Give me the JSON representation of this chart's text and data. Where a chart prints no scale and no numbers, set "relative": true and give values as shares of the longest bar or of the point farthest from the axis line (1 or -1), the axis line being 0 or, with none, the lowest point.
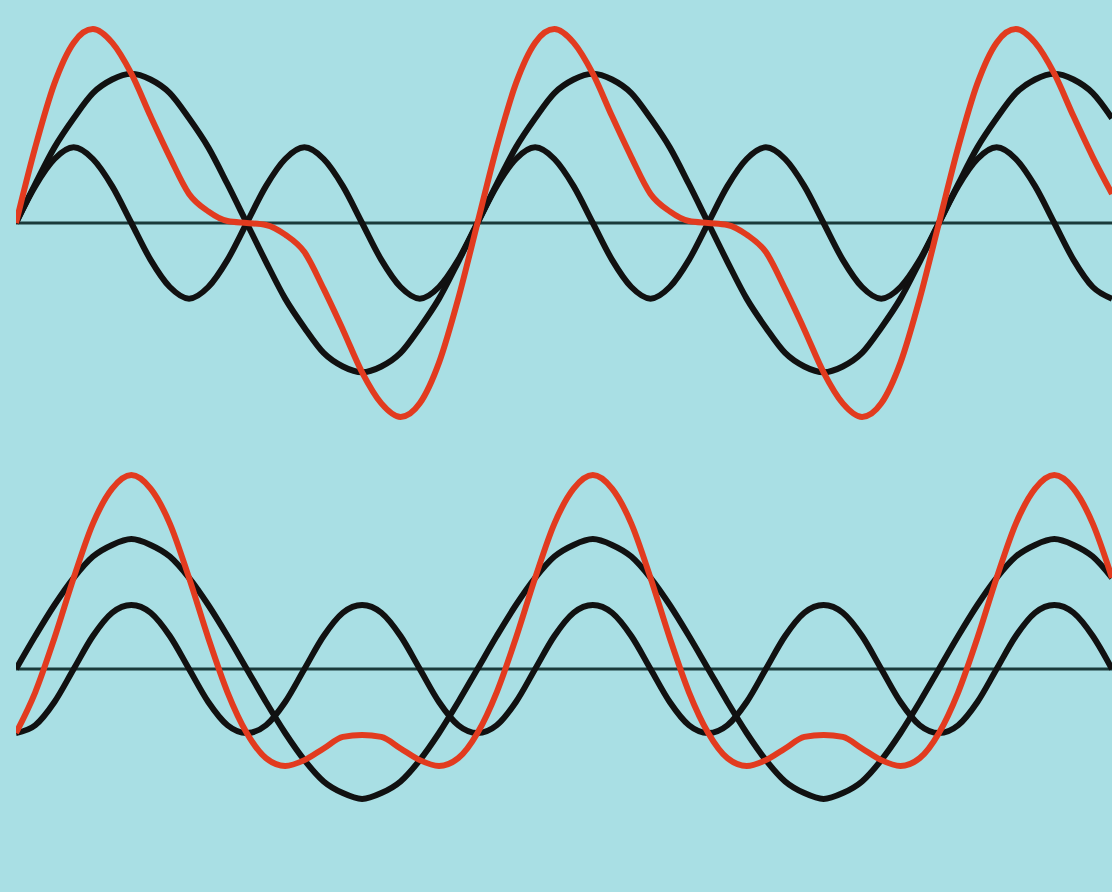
{
  "chart_data": [
    {
      "type": "line",
      "relative": true,
      "categories": [
        null,
        null,
        null,
        null,
        null,
        null,
        null,
        null,
        null,
        null,
        null,
        null,
        null,
        null,
        null,
        null,
        null,
        null,
        null,
        null,
        null,
        null,
        null,
        null,
        null,
        null,
        null,
        null,
        null,
        null,
        null,
        null,
        null,
        null,
        null,
        null,
        null,
        null,
        null,
        null,
        null,
        null,
        null,
        null,
        null,
        null,
        null,
        null,
        null,
        null,
        null,
        null,
        null,
        null,
        null,
        null,
        null,
        null
      ],
      "series": [
        {
          "color": "#111111",
          "values": [
            0,
            0.2,
            0.39,
            0.54,
            0.67,
            0.74,
            0.77,
            0.74,
            0.67,
            0.54,
            0.39,
            0.2,
            0,
            -0.2,
            -0.39,
            -0.54,
            -0.67,
            -0.74,
            -0.77,
            -0.74,
            -0.67,
            -0.54,
            -0.39,
            -0.2,
            0,
            0.2,
            0.39,
            0.54,
            0.67,
            0.74,
            0.77,
            0.74,
            0.67,
            0.54,
            0.39,
            0.2,
            0,
            -0.2,
            -0.39,
            -0.54,
            -0.67,
            -0.74,
            -0.77,
            -0.74,
            -0.67,
            -0.54,
            -0.39,
            -0.2,
            0,
            0.2,
            0.39,
            0.54,
            0.67,
            0.74,
            0.77,
            0.74,
            0.67,
            0.54
          ]
        },
        {
          "color": "#111111",
          "values": [
            0,
            0.19,
            0.33,
            0.39,
            0.33,
            0.19,
            0,
            -0.19,
            -0.33,
            -0.39,
            -0.33,
            -0.19,
            0,
            0.19,
            0.33,
            0.39,
            0.33,
            0.19,
            0,
            -0.19,
            -0.33,
            -0.39,
            -0.33,
            -0.19,
            0,
            0.19,
            0.33,
            0.39,
            0.33,
            0.19,
            0,
            -0.19,
            -0.33,
            -0.39,
            -0.33,
            -0.19,
            0,
            0.19,
            0.33,
            0.39,
            0.33,
            0.19,
            0,
            -0.19,
            -0.33,
            -0.39,
            -0.33,
            -0.19,
            0,
            0.19,
            0.33,
            0.39,
            0.33,
            0.19,
            0,
            -0.19,
            -0.33,
            -0.39
          ]
        },
        {
          "color": "#e23b1f",
          "values": [
            0,
            0.39,
            0.72,
            0.93,
            1,
            0.93,
            0.77,
            0.55,
            0.34,
            0.15,
            0.06,
            0.01,
            0,
            -0.01,
            -0.06,
            -0.15,
            -0.34,
            -0.55,
            -0.77,
            -0.93,
            -1,
            -0.93,
            -0.72,
            -0.39,
            0,
            0.39,
            0.72,
            0.93,
            1,
            0.93,
            0.77,
            0.55,
            0.34,
            0.15,
            0.06,
            0.01,
            0,
            -0.01,
            -0.06,
            -0.15,
            -0.34,
            -0.55,
            -0.77,
            -0.93,
            -1,
            -0.93,
            -0.72,
            -0.39,
            0,
            0.39,
            0.72,
            0.93,
            1,
            0.93,
            0.77,
            0.55,
            0.34,
            0.15
          ]
        }
      ]
    },
    {
      "type": "line",
      "relative": true,
      "categories": [
        null,
        null,
        null,
        null,
        null,
        null,
        null,
        null,
        null,
        null,
        null,
        null,
        null,
        null,
        null,
        null,
        null,
        null,
        null,
        null,
        null,
        null,
        null,
        null,
        null,
        null,
        null,
        null,
        null,
        null,
        null,
        null,
        null,
        null,
        null,
        null,
        null,
        null,
        null,
        null,
        null,
        null,
        null,
        null,
        null,
        null,
        null,
        null,
        null,
        null,
        null,
        null,
        null,
        null,
        null,
        null,
        null,
        null
      ],
      "series": [
        {
          "color": "#111111",
          "values": [
            0,
            0.17,
            0.33,
            0.47,
            0.58,
            0.64,
            0.67,
            0.64,
            0.58,
            0.47,
            0.33,
            0.17,
            0,
            -0.17,
            -0.33,
            -0.47,
            -0.58,
            -0.64,
            -0.67,
            -0.64,
            -0.58,
            -0.47,
            -0.33,
            -0.17,
            0,
            0.17,
            0.33,
            0.47,
            0.58,
            0.64,
            0.67,
            0.64,
            0.58,
            0.47,
            0.33,
            0.17,
            0,
            -0.17,
            -0.33,
            -0.47,
            -0.58,
            -0.64,
            -0.67,
            -0.64,
            -0.58,
            -0.47,
            -0.33,
            -0.17,
            0,
            0.17,
            0.33,
            0.47,
            0.58,
            0.64,
            0.67,
            0.64,
            0.58,
            0.47
          ]
        },
        {
          "color": "#111111",
          "values": [
            -0.33,
            -0.29,
            -0.17,
            0,
            0.17,
            0.29,
            0.33,
            0.29,
            0.17,
            0,
            -0.17,
            -0.29,
            -0.33,
            -0.29,
            -0.17,
            0,
            0.17,
            0.29,
            0.33,
            0.29,
            0.17,
            0,
            -0.17,
            -0.29,
            -0.33,
            -0.29,
            -0.17,
            0,
            0.17,
            0.29,
            0.33,
            0.29,
            0.17,
            0,
            -0.17,
            -0.29,
            -0.33,
            -0.29,
            -0.17,
            0,
            0.17,
            0.29,
            0.33,
            0.29,
            0.17,
            0,
            -0.17,
            -0.29,
            -0.33,
            -0.29,
            -0.17,
            0,
            0.17,
            0.29,
            0.33,
            0.29,
            0.17,
            0
          ]
        },
        {
          "color": "#e23b1f",
          "values": [
            -0.33,
            -0.12,
            0.16,
            0.47,
            0.75,
            0.93,
            1,
            0.93,
            0.75,
            0.47,
            0.16,
            -0.12,
            -0.33,
            -0.46,
            -0.5,
            -0.47,
            -0.41,
            -0.35,
            -0.34,
            -0.35,
            -0.41,
            -0.47,
            -0.5,
            -0.46,
            -0.33,
            -0.12,
            0.16,
            0.47,
            0.75,
            0.93,
            1,
            0.93,
            0.75,
            0.47,
            0.16,
            -0.12,
            -0.33,
            -0.46,
            -0.5,
            -0.47,
            -0.41,
            -0.35,
            -0.34,
            -0.35,
            -0.41,
            -0.47,
            -0.5,
            -0.46,
            -0.33,
            -0.12,
            0.16,
            0.47,
            0.75,
            0.93,
            1,
            0.93,
            0.75,
            0.47
          ]
        }
      ]
    }
  ]
}
